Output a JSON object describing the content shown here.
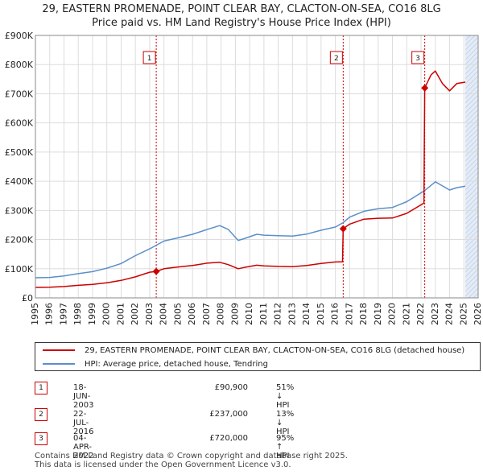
{
  "title_line1": "29, EASTERN PROMENADE, POINT CLEAR BAY, CLACTON-ON-SEA, CO16 8LG",
  "title_line2": "Price paid vs. HM Land Registry's House Price Index (HPI)",
  "chart_data": {
    "type": "line",
    "title": "29, EASTERN PROMENADE, POINT CLEAR BAY, CLACTON-ON-SEA, CO16 8LG — Price paid vs. HM Land Registry's House Price Index (HPI)",
    "xlim": [
      1995,
      2026
    ],
    "ylim": [
      0,
      900000
    ],
    "x_ticks": [
      "1995",
      "1996",
      "1997",
      "1998",
      "1999",
      "2000",
      "2001",
      "2002",
      "2003",
      "2004",
      "2005",
      "2006",
      "2007",
      "2008",
      "2009",
      "2010",
      "2011",
      "2012",
      "2013",
      "2014",
      "2015",
      "2016",
      "2017",
      "2018",
      "2019",
      "2020",
      "2021",
      "2022",
      "2023",
      "2024",
      "2025",
      "2026"
    ],
    "y_ticks": [
      {
        "value": 0,
        "label": "£0"
      },
      {
        "value": 100000,
        "label": "£100K"
      },
      {
        "value": 200000,
        "label": "£200K"
      },
      {
        "value": 300000,
        "label": "£300K"
      },
      {
        "value": 400000,
        "label": "£400K"
      },
      {
        "value": 500000,
        "label": "£500K"
      },
      {
        "value": 600000,
        "label": "£600K"
      },
      {
        "value": 700000,
        "label": "£700K"
      },
      {
        "value": 800000,
        "label": "£800K"
      },
      {
        "value": 900000,
        "label": "£900K"
      }
    ],
    "grid": true,
    "series": [
      {
        "name": "29, EASTERN PROMENADE, POINT CLEAR BAY, CLACTON-ON-SEA, CO16 8LG (detached house)",
        "color": "#cc0000",
        "points": [
          [
            1995,
            36000
          ],
          [
            1996,
            36500
          ],
          [
            1997,
            39000
          ],
          [
            1998,
            43000
          ],
          [
            1999,
            46000
          ],
          [
            2000,
            52000
          ],
          [
            2001,
            60000
          ],
          [
            2002,
            72000
          ],
          [
            2003,
            88000
          ],
          [
            2003.46,
            90900
          ],
          [
            2004,
            100000
          ],
          [
            2005,
            106000
          ],
          [
            2006,
            111000
          ],
          [
            2007,
            119000
          ],
          [
            2007.9,
            122000
          ],
          [
            2008.5,
            114000
          ],
          [
            2009.2,
            100000
          ],
          [
            2009.6,
            104000
          ],
          [
            2010.5,
            112000
          ],
          [
            2011,
            110000
          ],
          [
            2012,
            108000
          ],
          [
            2013,
            107000
          ],
          [
            2014,
            111000
          ],
          [
            2015,
            118000
          ],
          [
            2016,
            123000
          ],
          [
            2016.5,
            124000
          ],
          [
            2016.55,
            237000
          ],
          [
            2017,
            253000
          ],
          [
            2018,
            270000
          ],
          [
            2019,
            273000
          ],
          [
            2020,
            274000
          ],
          [
            2021,
            290000
          ],
          [
            2022.2,
            325000
          ],
          [
            2022.26,
            720000
          ],
          [
            2022.7,
            765000
          ],
          [
            2023,
            778000
          ],
          [
            2023.5,
            735000
          ],
          [
            2024,
            710000
          ],
          [
            2024.5,
            735000
          ],
          [
            2025.1,
            740000
          ]
        ]
      },
      {
        "name": "HPI: Average price, detached house, Tendring",
        "color": "#5b8fc9",
        "points": [
          [
            1995,
            69000
          ],
          [
            1996,
            70000
          ],
          [
            1997,
            75000
          ],
          [
            1998,
            83000
          ],
          [
            1999,
            90000
          ],
          [
            2000,
            102000
          ],
          [
            2001,
            118000
          ],
          [
            2002,
            145000
          ],
          [
            2003,
            168000
          ],
          [
            2004,
            195000
          ],
          [
            2005,
            206000
          ],
          [
            2006,
            218000
          ],
          [
            2007,
            234000
          ],
          [
            2007.9,
            248000
          ],
          [
            2008.5,
            235000
          ],
          [
            2009.2,
            197000
          ],
          [
            2009.6,
            203000
          ],
          [
            2010.5,
            218000
          ],
          [
            2011,
            215000
          ],
          [
            2012,
            213000
          ],
          [
            2013,
            212000
          ],
          [
            2014,
            219000
          ],
          [
            2015,
            232000
          ],
          [
            2016,
            243000
          ],
          [
            2016.55,
            258000
          ],
          [
            2017,
            277000
          ],
          [
            2018,
            297000
          ],
          [
            2019,
            306000
          ],
          [
            2020,
            310000
          ],
          [
            2021,
            330000
          ],
          [
            2022.26,
            368000
          ],
          [
            2022.7,
            386000
          ],
          [
            2023,
            398000
          ],
          [
            2023.5,
            384000
          ],
          [
            2024,
            370000
          ],
          [
            2024.5,
            378000
          ],
          [
            2025.1,
            383000
          ]
        ]
      }
    ],
    "markers": [
      {
        "label": "1",
        "x": 2003.46,
        "y": 90900
      },
      {
        "label": "2",
        "x": 2016.55,
        "y": 237000
      },
      {
        "label": "3",
        "x": 2022.26,
        "y": 720000
      }
    ],
    "shade_from": 2025.1,
    "colors": {
      "property": "#cc0000",
      "hpi": "#5b8fc9",
      "shade": "#e4ecf7",
      "grid": "#dddddd"
    }
  },
  "legend": {
    "property_label": "29, EASTERN PROMENADE, POINT CLEAR BAY, CLACTON-ON-SEA, CO16 8LG (detached house)",
    "hpi_label": "HPI: Average price, detached house, Tendring"
  },
  "sales": [
    {
      "num": "1",
      "date": "18-JUN-2003",
      "price": "£90,900",
      "hpi": "51% ↓ HPI"
    },
    {
      "num": "2",
      "date": "22-JUL-2016",
      "price": "£237,000",
      "hpi": "13% ↓ HPI"
    },
    {
      "num": "3",
      "date": "04-APR-2022",
      "price": "£720,000",
      "hpi": "95% ↑ HPI"
    }
  ],
  "footer_line1": "Contains HM Land Registry data © Crown copyright and database right 2025.",
  "footer_line2": "This data is licensed under the Open Government Licence v3.0."
}
